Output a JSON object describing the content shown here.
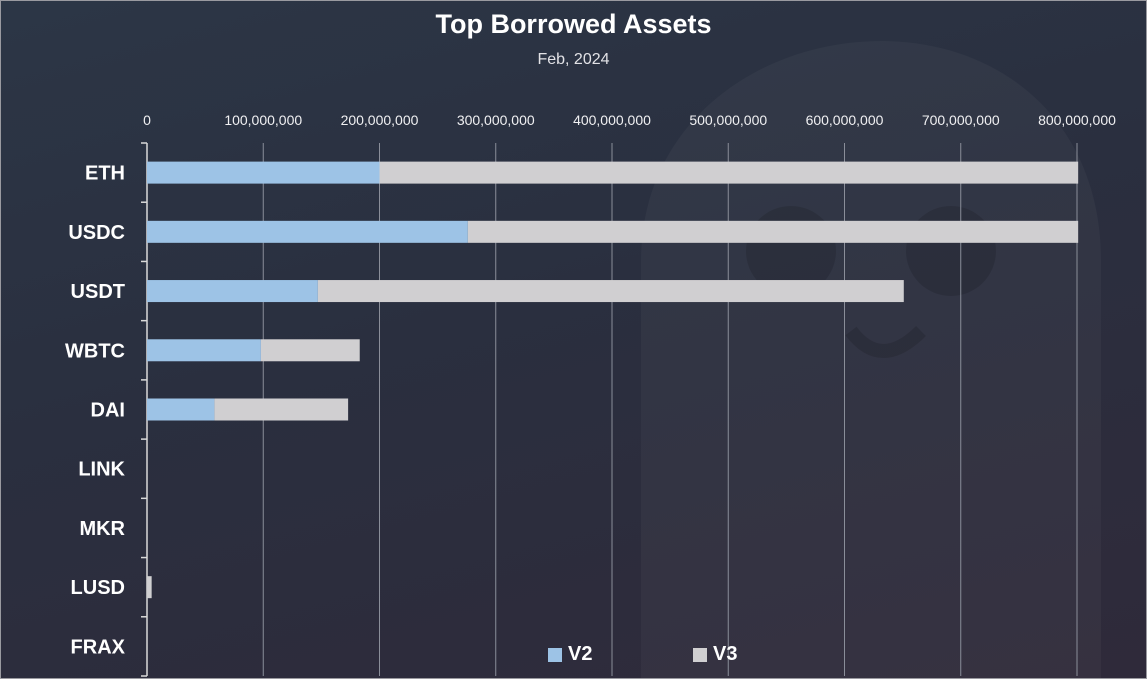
{
  "colors": {
    "v2": "#9dc3e6",
    "v3": "#d0cfd1",
    "gridline": "#8a8e99",
    "axis": "#d9d9d9"
  },
  "chart_data": {
    "type": "bar",
    "orientation": "horizontal",
    "stacked": true,
    "title": "Top Borrowed Assets",
    "subtitle": "Feb, 2024",
    "categories": [
      "ETH",
      "USDC",
      "USDT",
      "WBTC",
      "DAI",
      "LINK",
      "MKR",
      "LUSD",
      "FRAX"
    ],
    "series": [
      {
        "name": "V2",
        "values": [
          200000000,
          276000000,
          147000000,
          98000000,
          58000000,
          0,
          0,
          0,
          0
        ]
      },
      {
        "name": "V3",
        "values": [
          601000000,
          525000000,
          504000000,
          85000000,
          115000000,
          0,
          0,
          4000000,
          0
        ]
      }
    ],
    "xlim": [
      0,
      800000000
    ],
    "xticks": [
      "0",
      "100,000,000",
      "200,000,000",
      "300,000,000",
      "400,000,000",
      "500,000,000",
      "600,000,000",
      "700,000,000",
      "800,000,000"
    ],
    "x_axis_position": "top",
    "grid": true,
    "legend_position": "bottom"
  }
}
